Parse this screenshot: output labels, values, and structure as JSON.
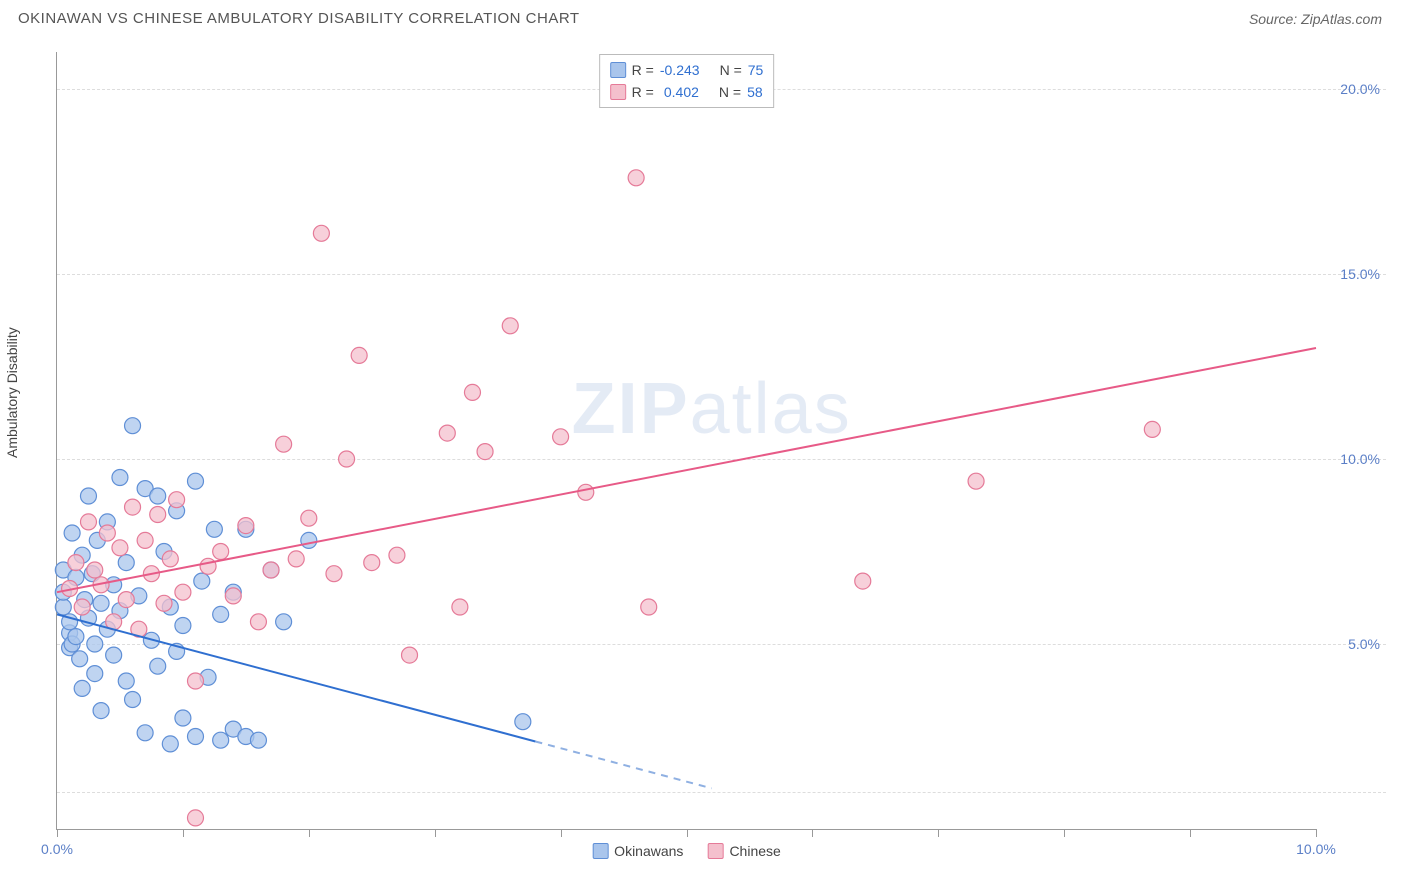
{
  "header": {
    "title": "OKINAWAN VS CHINESE AMBULATORY DISABILITY CORRELATION CHART",
    "source_label": "Source:",
    "source_name": "ZipAtlas.com"
  },
  "chart": {
    "type": "scatter",
    "ylabel": "Ambulatory Disability",
    "xlim": [
      0,
      10
    ],
    "ylim": [
      0,
      21
    ],
    "x_ticks_minor": [
      0,
      1,
      2,
      3,
      4,
      5,
      6,
      7,
      8,
      9,
      10
    ],
    "x_tick_labels": [
      {
        "v": 0,
        "label": "0.0%"
      },
      {
        "v": 10,
        "label": "10.0%"
      }
    ],
    "y_gridlines": [
      1,
      5,
      10,
      15,
      20
    ],
    "y_tick_labels": [
      {
        "v": 5,
        "label": "5.0%"
      },
      {
        "v": 10,
        "label": "10.0%"
      },
      {
        "v": 15,
        "label": "15.0%"
      },
      {
        "v": 20,
        "label": "20.0%"
      }
    ],
    "axis_tick_color": "#5b7fc7",
    "background_color": "#ffffff",
    "grid_color": "#dddddd",
    "watermark": {
      "text_strong": "ZIP",
      "text_light": "atlas",
      "color": "#8aa6d6"
    },
    "series": [
      {
        "name": "Okinawans",
        "marker_color_fill": "#a9c5ec",
        "marker_color_stroke": "#5f8fd6",
        "marker_radius": 8,
        "marker_opacity": 0.75,
        "R": "-0.243",
        "N": "75",
        "trend": {
          "x1": 0,
          "y1": 5.8,
          "x2": 5.2,
          "y2": 1.1,
          "solid_color": "#2f6fd0",
          "beyond_x": 3.8,
          "dash_color": "#8fb0e2",
          "width": 2
        },
        "points": [
          [
            0.05,
            6.0
          ],
          [
            0.05,
            7.0
          ],
          [
            0.05,
            6.4
          ],
          [
            0.1,
            5.3
          ],
          [
            0.1,
            4.9
          ],
          [
            0.1,
            5.6
          ],
          [
            0.12,
            5.0
          ],
          [
            0.12,
            8.0
          ],
          [
            0.15,
            6.8
          ],
          [
            0.15,
            5.2
          ],
          [
            0.18,
            4.6
          ],
          [
            0.2,
            7.4
          ],
          [
            0.2,
            3.8
          ],
          [
            0.22,
            6.2
          ],
          [
            0.25,
            5.7
          ],
          [
            0.25,
            9.0
          ],
          [
            0.28,
            6.9
          ],
          [
            0.3,
            5.0
          ],
          [
            0.3,
            4.2
          ],
          [
            0.32,
            7.8
          ],
          [
            0.35,
            6.1
          ],
          [
            0.35,
            3.2
          ],
          [
            0.4,
            5.4
          ],
          [
            0.4,
            8.3
          ],
          [
            0.45,
            4.7
          ],
          [
            0.45,
            6.6
          ],
          [
            0.5,
            9.5
          ],
          [
            0.5,
            5.9
          ],
          [
            0.55,
            4.0
          ],
          [
            0.55,
            7.2
          ],
          [
            0.6,
            10.9
          ],
          [
            0.6,
            3.5
          ],
          [
            0.65,
            6.3
          ],
          [
            0.7,
            9.2
          ],
          [
            0.7,
            2.6
          ],
          [
            0.75,
            5.1
          ],
          [
            0.8,
            9.0
          ],
          [
            0.8,
            4.4
          ],
          [
            0.85,
            7.5
          ],
          [
            0.9,
            2.3
          ],
          [
            0.9,
            6.0
          ],
          [
            0.95,
            4.8
          ],
          [
            0.95,
            8.6
          ],
          [
            1.0,
            3.0
          ],
          [
            1.0,
            5.5
          ],
          [
            1.1,
            2.5
          ],
          [
            1.1,
            9.4
          ],
          [
            1.15,
            6.7
          ],
          [
            1.2,
            4.1
          ],
          [
            1.25,
            8.1
          ],
          [
            1.3,
            2.4
          ],
          [
            1.3,
            5.8
          ],
          [
            1.4,
            2.7
          ],
          [
            1.4,
            6.4
          ],
          [
            1.5,
            8.1
          ],
          [
            1.5,
            2.5
          ],
          [
            1.6,
            2.4
          ],
          [
            1.7,
            7.0
          ],
          [
            1.8,
            5.6
          ],
          [
            2.0,
            7.8
          ],
          [
            3.7,
            2.9
          ]
        ]
      },
      {
        "name": "Chinese",
        "marker_color_fill": "#f4c0cd",
        "marker_color_stroke": "#e57a98",
        "marker_radius": 8,
        "marker_opacity": 0.75,
        "R": "0.402",
        "N": "58",
        "trend": {
          "x1": 0,
          "y1": 6.4,
          "x2": 10,
          "y2": 13.0,
          "solid_color": "#e75a87",
          "beyond_x": 10,
          "dash_color": "#e75a87",
          "width": 2
        },
        "points": [
          [
            0.1,
            6.5
          ],
          [
            0.15,
            7.2
          ],
          [
            0.2,
            6.0
          ],
          [
            0.25,
            8.3
          ],
          [
            0.3,
            7.0
          ],
          [
            0.35,
            6.6
          ],
          [
            0.4,
            8.0
          ],
          [
            0.45,
            5.6
          ],
          [
            0.5,
            7.6
          ],
          [
            0.55,
            6.2
          ],
          [
            0.6,
            8.7
          ],
          [
            0.65,
            5.4
          ],
          [
            0.7,
            7.8
          ],
          [
            0.75,
            6.9
          ],
          [
            0.8,
            8.5
          ],
          [
            0.85,
            6.1
          ],
          [
            0.9,
            7.3
          ],
          [
            0.95,
            8.9
          ],
          [
            1.0,
            6.4
          ],
          [
            1.1,
            4.0
          ],
          [
            1.1,
            0.3
          ],
          [
            1.2,
            7.1
          ],
          [
            1.3,
            7.5
          ],
          [
            1.4,
            6.3
          ],
          [
            1.5,
            8.2
          ],
          [
            1.6,
            5.6
          ],
          [
            1.7,
            7.0
          ],
          [
            1.8,
            10.4
          ],
          [
            1.9,
            7.3
          ],
          [
            2.0,
            8.4
          ],
          [
            2.1,
            16.1
          ],
          [
            2.2,
            6.9
          ],
          [
            2.3,
            10.0
          ],
          [
            2.4,
            12.8
          ],
          [
            2.5,
            7.2
          ],
          [
            2.7,
            7.4
          ],
          [
            2.8,
            4.7
          ],
          [
            3.1,
            10.7
          ],
          [
            3.2,
            6.0
          ],
          [
            3.3,
            11.8
          ],
          [
            3.4,
            10.2
          ],
          [
            3.6,
            13.6
          ],
          [
            4.0,
            10.6
          ],
          [
            4.2,
            9.1
          ],
          [
            4.6,
            17.6
          ],
          [
            4.7,
            6.0
          ],
          [
            6.4,
            6.7
          ],
          [
            7.3,
            9.4
          ],
          [
            8.7,
            10.8
          ]
        ]
      }
    ],
    "legend_stats": {
      "value_color": "#2f6fd0",
      "label_color": "#444444"
    },
    "legend_bottom_labels": [
      "Okinawans",
      "Chinese"
    ]
  }
}
